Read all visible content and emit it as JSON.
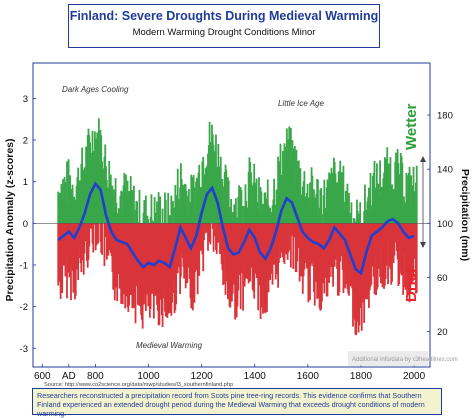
{
  "header": {
    "title": "Finland: Severe Droughts During Medieval Warming",
    "subtitle": "Modern Warming Drought Conditions Minor"
  },
  "source_text": "Source: http://www.co2science.org/data/mwp/studies/l3_southernfinland.php",
  "caption": "Researchers reconstructed a precipitation record from Scots pine tree-ring records. This evidence confirms that Southern Finland experienced an extended drought period during the Medieval Warming that exceeds drought conditions of modern warming.",
  "watermark": "Additional info/data by c3headlines.com",
  "colors": {
    "wetter": "#2e9e3a",
    "drier": "#e8272d",
    "smooth": "#1f3fd0",
    "wet_bars": "#3aa64a",
    "dry_bars": "#d8343a",
    "frame": "#1f3c99"
  },
  "chart_data": {
    "type": "bar",
    "xlabel": "",
    "ylabel": "Precipitation Anomaly (z-scores)",
    "ylabel_right": "Precipitation (mm)",
    "x_ticks": [
      "600",
      "AD",
      "800",
      "1000",
      "1200",
      "1400",
      "1600",
      "1800",
      "2000"
    ],
    "x_tick_values": [
      600,
      700,
      800,
      1000,
      1200,
      1400,
      1600,
      1800,
      2000
    ],
    "xlim": [
      565,
      2060
    ],
    "ylim": [
      -3.45,
      3.85
    ],
    "y_ticks": [
      3,
      2,
      1,
      0,
      -1,
      -2,
      -3
    ],
    "y2_ticks": [
      180,
      140,
      100,
      60,
      20
    ],
    "y2_tick_values": [
      2.6,
      1.3,
      0.0,
      -1.3,
      -2.6
    ],
    "annotations": [
      {
        "text": "Dark Ages Cooling",
        "x": 780,
        "y": 3.35
      },
      {
        "text": "Little Ice Age",
        "x": 1470,
        "y": 3.0
      },
      {
        "text": "Medieval Warming",
        "x": 1095,
        "y": -2.85
      }
    ],
    "legend": {
      "wetter_label": "Wetter",
      "drier_label": "Drier"
    },
    "series": [
      {
        "name": "smoothed",
        "x": [
          660,
          680,
          700,
          720,
          740,
          760,
          780,
          800,
          820,
          840,
          860,
          880,
          900,
          920,
          940,
          960,
          980,
          1000,
          1020,
          1040,
          1060,
          1080,
          1100,
          1120,
          1140,
          1160,
          1180,
          1200,
          1220,
          1240,
          1260,
          1280,
          1300,
          1320,
          1340,
          1360,
          1380,
          1400,
          1420,
          1440,
          1460,
          1480,
          1500,
          1520,
          1540,
          1560,
          1580,
          1600,
          1620,
          1640,
          1660,
          1680,
          1700,
          1720,
          1740,
          1760,
          1780,
          1800,
          1820,
          1840,
          1860,
          1880,
          1900,
          1920,
          1940,
          1960,
          1980,
          2000
        ],
        "values": [
          -0.4,
          -0.3,
          -0.2,
          -0.35,
          -0.1,
          0.25,
          0.7,
          0.95,
          0.8,
          0.2,
          -0.2,
          -0.4,
          -0.45,
          -0.5,
          -0.7,
          -0.9,
          -1.05,
          -0.95,
          -1.0,
          -0.9,
          -0.95,
          -1.05,
          -0.6,
          -0.1,
          -0.35,
          -0.6,
          -0.3,
          0.25,
          0.7,
          0.85,
          0.5,
          -0.1,
          -0.6,
          -0.75,
          -0.7,
          -0.45,
          -0.15,
          -0.35,
          -0.7,
          -0.85,
          -0.6,
          -0.2,
          0.3,
          0.6,
          0.5,
          0.15,
          -0.2,
          -0.35,
          -0.45,
          -0.5,
          -0.6,
          -0.4,
          -0.1,
          -0.25,
          -0.4,
          -0.75,
          -1.1,
          -1.2,
          -0.7,
          -0.3,
          -0.2,
          -0.1,
          0.05,
          0.1,
          0.0,
          -0.2,
          -0.35,
          -0.3
        ]
      }
    ]
  }
}
